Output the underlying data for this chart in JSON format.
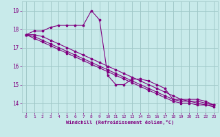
{
  "title": "",
  "xlabel": "Windchill (Refroidissement éolien,°C)",
  "ylabel": "",
  "bg_color": "#c8eaea",
  "grid_color": "#a0c8c8",
  "line_color": "#800080",
  "xlim": [
    -0.5,
    23.5
  ],
  "ylim": [
    13.5,
    19.5
  ],
  "yticks": [
    14,
    15,
    16,
    17,
    18,
    19
  ],
  "xticks": [
    0,
    1,
    2,
    3,
    4,
    5,
    6,
    7,
    8,
    9,
    10,
    11,
    12,
    13,
    14,
    15,
    16,
    17,
    18,
    19,
    20,
    21,
    22,
    23
  ],
  "series": [
    [
      17.7,
      17.9,
      17.9,
      18.1,
      18.2,
      18.2,
      18.2,
      18.2,
      19.0,
      18.5,
      15.5,
      15.0,
      15.0,
      15.3,
      15.3,
      15.2,
      15.0,
      14.8,
      14.2,
      14.2,
      14.2,
      14.2,
      14.1,
      13.9
    ],
    [
      17.7,
      17.7,
      17.6,
      17.4,
      17.2,
      17.0,
      16.8,
      16.6,
      16.4,
      16.2,
      16.0,
      15.8,
      15.6,
      15.4,
      15.2,
      15.0,
      14.8,
      14.6,
      14.4,
      14.2,
      14.1,
      14.1,
      14.0,
      13.9
    ],
    [
      17.7,
      17.6,
      17.4,
      17.2,
      17.0,
      16.8,
      16.6,
      16.4,
      16.2,
      16.0,
      15.8,
      15.6,
      15.4,
      15.2,
      15.0,
      14.8,
      14.6,
      14.4,
      14.2,
      14.1,
      14.1,
      14.0,
      13.9,
      13.9
    ],
    [
      17.7,
      17.5,
      17.3,
      17.1,
      16.9,
      16.7,
      16.5,
      16.3,
      16.1,
      15.9,
      15.7,
      15.5,
      15.3,
      15.1,
      14.9,
      14.7,
      14.5,
      14.3,
      14.1,
      14.0,
      14.0,
      13.9,
      13.9,
      13.8
    ]
  ]
}
